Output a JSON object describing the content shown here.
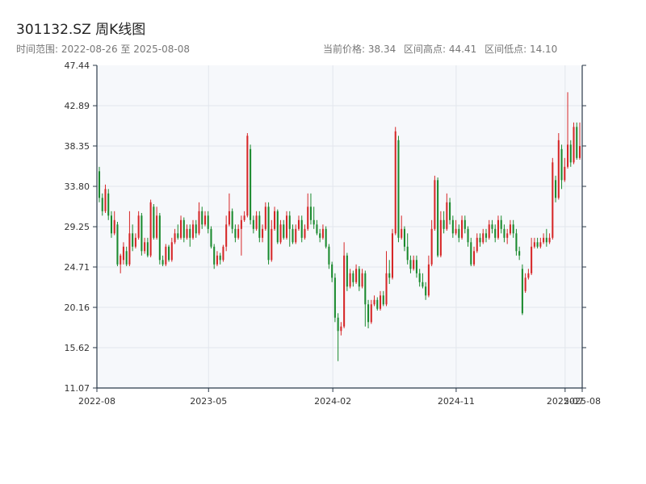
{
  "header": {
    "title": "301132.SZ 周K线图",
    "range_label": "时间范围: 2022-08-26 至 2025-08-08",
    "current_price": "当前价格: 38.34",
    "range_high": "区间高点: 44.41",
    "range_low": "区间低点: 14.10"
  },
  "colors": {
    "up": "#d62728",
    "down": "#1a8a2e",
    "plot_bg": "#f6f8fb",
    "grid": "#e2e6ec",
    "axis": "#2b3a4a"
  },
  "chart_data": {
    "type": "candlestick",
    "title": "301132.SZ 周K线图",
    "ylim": [
      11.07,
      47.44
    ],
    "yticks": [
      "47.44",
      "42.89",
      "38.35",
      "33.80",
      "29.25",
      "24.71",
      "20.16",
      "15.62",
      "11.07"
    ],
    "xticks": [
      {
        "label": "2022-08",
        "date": "2022-08-26"
      },
      {
        "label": "2023-05",
        "date": "2023-05-01"
      },
      {
        "label": "2024-02",
        "date": "2024-02-01"
      },
      {
        "label": "2024-11",
        "date": "2024-11-01"
      },
      {
        "label": "2025-07",
        "date": "2025-07-01"
      },
      {
        "label": "2025-08",
        "date": "2025-08-08"
      }
    ],
    "grid": true,
    "date_start": "2022-08-26",
    "date_end": "2025-08-08",
    "candles": [
      [
        35.5,
        32.5,
        36.0,
        32.0
      ],
      [
        32.5,
        31.0,
        33.0,
        30.5
      ],
      [
        31.0,
        33.5,
        34.0,
        30.8
      ],
      [
        33.0,
        30.5,
        33.5,
        30.0
      ],
      [
        30.5,
        28.5,
        31.0,
        28.0
      ],
      [
        28.5,
        30.0,
        31.0,
        28.3
      ],
      [
        29.5,
        25.0,
        29.8,
        24.8
      ],
      [
        25.0,
        26.0,
        26.2,
        24.0
      ],
      [
        25.5,
        27.0,
        27.5,
        25.0
      ],
      [
        26.5,
        25.0,
        27.0,
        24.8
      ],
      [
        25.0,
        28.5,
        31.0,
        24.8
      ],
      [
        28.5,
        27.0,
        29.5,
        26.5
      ],
      [
        27.0,
        28.0,
        28.5,
        26.8
      ],
      [
        28.0,
        30.5,
        31.0,
        27.8
      ],
      [
        30.5,
        26.5,
        30.8,
        26.0
      ],
      [
        26.5,
        27.5,
        28.0,
        26.2
      ],
      [
        27.5,
        26.0,
        28.0,
        25.8
      ],
      [
        26.0,
        32.0,
        32.3,
        25.8
      ],
      [
        31.5,
        28.0,
        31.8,
        27.8
      ],
      [
        28.0,
        30.5,
        31.5,
        27.8
      ],
      [
        30.5,
        25.5,
        30.8,
        25.0
      ],
      [
        25.5,
        25.0,
        26.0,
        24.8
      ],
      [
        25.0,
        27.0,
        27.3,
        24.8
      ],
      [
        27.0,
        25.5,
        27.2,
        25.3
      ],
      [
        25.5,
        27.5,
        28.0,
        25.3
      ],
      [
        27.5,
        28.5,
        29.0,
        27.3
      ],
      [
        28.5,
        28.0,
        29.5,
        27.8
      ],
      [
        28.0,
        30.0,
        30.5,
        27.8
      ],
      [
        30.0,
        28.0,
        30.3,
        27.5
      ],
      [
        28.0,
        29.0,
        29.5,
        27.8
      ],
      [
        29.0,
        28.0,
        29.5,
        27.0
      ],
      [
        28.0,
        29.5,
        30.0,
        27.8
      ],
      [
        29.5,
        28.5,
        30.0,
        28.0
      ],
      [
        28.5,
        31.0,
        32.0,
        28.3
      ],
      [
        31.0,
        29.5,
        31.5,
        29.0
      ],
      [
        29.5,
        30.5,
        31.0,
        29.3
      ],
      [
        30.5,
        29.0,
        31.0,
        28.5
      ],
      [
        29.0,
        27.0,
        29.3,
        26.8
      ],
      [
        27.0,
        25.0,
        27.3,
        24.5
      ],
      [
        25.0,
        26.0,
        26.5,
        24.8
      ],
      [
        26.0,
        25.5,
        26.3,
        25.0
      ],
      [
        25.5,
        27.0,
        27.2,
        25.3
      ],
      [
        27.0,
        29.5,
        30.5,
        26.5
      ],
      [
        29.5,
        31.0,
        33.0,
        29.3
      ],
      [
        31.0,
        29.0,
        31.3,
        28.5
      ],
      [
        29.0,
        28.0,
        29.5,
        27.5
      ],
      [
        28.0,
        29.0,
        29.5,
        27.8
      ],
      [
        29.0,
        30.0,
        30.5,
        26.0
      ],
      [
        30.0,
        30.5,
        31.0,
        29.8
      ],
      [
        30.5,
        39.5,
        39.8,
        30.3
      ],
      [
        38.0,
        30.0,
        38.5,
        29.5
      ],
      [
        30.0,
        29.0,
        30.5,
        28.5
      ],
      [
        29.0,
        30.5,
        31.0,
        28.8
      ],
      [
        30.5,
        28.0,
        31.0,
        27.5
      ],
      [
        28.0,
        29.0,
        29.5,
        27.5
      ],
      [
        29.0,
        31.5,
        32.0,
        28.8
      ],
      [
        31.5,
        25.5,
        32.0,
        25.0
      ],
      [
        25.5,
        29.0,
        30.0,
        25.3
      ],
      [
        29.0,
        31.0,
        31.5,
        28.8
      ],
      [
        31.0,
        27.5,
        31.2,
        27.3
      ],
      [
        27.5,
        29.5,
        30.0,
        27.3
      ],
      [
        29.5,
        28.0,
        30.0,
        27.8
      ],
      [
        28.0,
        30.5,
        31.0,
        27.8
      ],
      [
        30.5,
        29.0,
        31.0,
        27.0
      ],
      [
        29.0,
        27.5,
        29.5,
        27.3
      ],
      [
        27.5,
        29.0,
        29.5,
        27.3
      ],
      [
        29.0,
        30.0,
        30.5,
        28.8
      ],
      [
        30.0,
        28.0,
        30.5,
        27.5
      ],
      [
        28.0,
        29.0,
        29.5,
        27.8
      ],
      [
        29.0,
        31.5,
        33.0,
        28.8
      ],
      [
        31.5,
        30.0,
        33.0,
        29.5
      ],
      [
        30.0,
        29.5,
        31.5,
        29.0
      ],
      [
        29.5,
        28.5,
        30.0,
        28.3
      ],
      [
        28.5,
        28.0,
        29.0,
        27.5
      ],
      [
        28.0,
        29.0,
        29.5,
        27.8
      ],
      [
        29.0,
        27.0,
        29.3,
        26.8
      ],
      [
        27.0,
        25.0,
        27.3,
        24.5
      ],
      [
        25.0,
        23.5,
        25.3,
        23.0
      ],
      [
        23.5,
        19.0,
        24.0,
        18.5
      ],
      [
        19.0,
        17.5,
        19.5,
        14.1
      ],
      [
        17.5,
        18.0,
        18.5,
        17.0
      ],
      [
        18.0,
        26.0,
        27.5,
        17.8
      ],
      [
        26.0,
        22.5,
        26.3,
        22.0
      ],
      [
        22.5,
        24.0,
        24.5,
        22.3
      ],
      [
        24.0,
        23.0,
        24.3,
        22.5
      ],
      [
        23.0,
        24.5,
        25.0,
        22.8
      ],
      [
        24.5,
        22.5,
        24.8,
        22.0
      ],
      [
        22.5,
        24.0,
        24.5,
        22.3
      ],
      [
        24.0,
        20.5,
        24.3,
        18.0
      ],
      [
        20.5,
        18.5,
        21.0,
        17.8
      ],
      [
        18.5,
        20.5,
        21.0,
        18.3
      ],
      [
        20.5,
        21.0,
        21.5,
        20.3
      ],
      [
        21.0,
        20.0,
        21.3,
        19.8
      ],
      [
        20.0,
        21.5,
        22.0,
        19.8
      ],
      [
        21.5,
        20.5,
        22.0,
        20.3
      ],
      [
        20.5,
        24.0,
        26.5,
        20.3
      ],
      [
        24.0,
        23.5,
        25.5,
        22.8
      ],
      [
        23.5,
        28.5,
        29.0,
        23.3
      ],
      [
        28.5,
        40.0,
        40.5,
        28.3
      ],
      [
        39.0,
        28.0,
        39.5,
        27.5
      ],
      [
        28.0,
        29.0,
        30.5,
        27.8
      ],
      [
        29.0,
        27.0,
        29.3,
        26.5
      ],
      [
        27.0,
        25.5,
        28.5,
        25.0
      ],
      [
        25.5,
        24.5,
        26.0,
        24.0
      ],
      [
        24.5,
        25.5,
        26.0,
        24.3
      ],
      [
        25.5,
        24.0,
        26.0,
        23.5
      ],
      [
        24.0,
        23.0,
        24.5,
        22.5
      ],
      [
        23.0,
        22.5,
        24.0,
        22.3
      ],
      [
        22.5,
        21.5,
        23.0,
        21.0
      ],
      [
        21.5,
        25.0,
        26.0,
        21.3
      ],
      [
        25.0,
        29.0,
        30.0,
        24.8
      ],
      [
        29.0,
        34.5,
        35.0,
        28.8
      ],
      [
        34.5,
        26.0,
        34.8,
        25.8
      ],
      [
        26.0,
        30.0,
        31.0,
        25.8
      ],
      [
        30.0,
        29.0,
        31.0,
        28.5
      ],
      [
        29.0,
        32.0,
        33.0,
        28.8
      ],
      [
        32.0,
        30.0,
        32.5,
        29.5
      ],
      [
        30.0,
        28.5,
        30.5,
        28.0
      ],
      [
        28.5,
        29.0,
        30.0,
        28.3
      ],
      [
        29.0,
        28.0,
        29.5,
        27.5
      ],
      [
        28.0,
        30.0,
        30.5,
        27.8
      ],
      [
        30.0,
        29.0,
        30.5,
        28.5
      ],
      [
        29.0,
        27.5,
        29.3,
        27.0
      ],
      [
        27.5,
        25.0,
        28.0,
        24.8
      ],
      [
        25.0,
        26.5,
        27.0,
        24.8
      ],
      [
        26.5,
        28.0,
        28.5,
        26.3
      ],
      [
        28.0,
        27.5,
        28.5,
        27.0
      ],
      [
        27.5,
        28.5,
        29.0,
        27.3
      ],
      [
        28.5,
        28.0,
        29.0,
        27.5
      ],
      [
        28.0,
        29.5,
        30.0,
        27.8
      ],
      [
        29.5,
        29.0,
        30.0,
        28.5
      ],
      [
        29.0,
        28.0,
        29.5,
        27.5
      ],
      [
        28.0,
        30.0,
        30.5,
        27.8
      ],
      [
        30.0,
        29.0,
        30.5,
        28.5
      ],
      [
        29.0,
        28.0,
        29.5,
        27.5
      ],
      [
        28.0,
        28.5,
        29.0,
        27.3
      ],
      [
        28.5,
        29.5,
        30.0,
        28.3
      ],
      [
        29.5,
        28.5,
        30.0,
        28.0
      ],
      [
        28.5,
        26.5,
        29.0,
        26.0
      ],
      [
        26.5,
        26.0,
        27.0,
        25.5
      ],
      [
        24.5,
        19.5,
        25.0,
        19.3
      ],
      [
        22.0,
        23.5,
        24.0,
        21.8
      ],
      [
        23.5,
        24.0,
        24.5,
        23.3
      ],
      [
        24.0,
        27.0,
        28.0,
        23.8
      ],
      [
        27.0,
        27.5,
        28.0,
        26.8
      ],
      [
        27.5,
        27.0,
        28.0,
        26.8
      ],
      [
        27.0,
        27.5,
        28.0,
        26.8
      ],
      [
        27.5,
        28.0,
        28.5,
        27.3
      ],
      [
        28.0,
        27.5,
        29.0,
        27.0
      ],
      [
        27.5,
        28.0,
        28.5,
        27.3
      ],
      [
        28.0,
        36.5,
        37.0,
        27.8
      ],
      [
        34.5,
        32.5,
        35.0,
        32.0
      ],
      [
        32.5,
        39.0,
        39.8,
        32.3
      ],
      [
        38.0,
        34.5,
        38.5,
        33.5
      ],
      [
        34.5,
        36.0,
        37.0,
        34.3
      ],
      [
        36.0,
        38.5,
        44.41,
        35.8
      ],
      [
        38.5,
        36.5,
        39.0,
        36.0
      ],
      [
        36.5,
        40.5,
        41.0,
        36.3
      ],
      [
        40.5,
        37.0,
        41.0,
        36.8
      ],
      [
        37.0,
        38.34,
        41.0,
        36.8
      ]
    ]
  }
}
